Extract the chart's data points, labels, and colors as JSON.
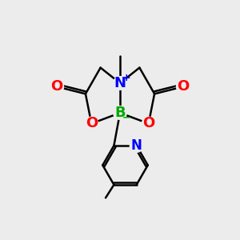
{
  "bg_color": "#ececec",
  "atom_colors": {
    "C": "#000000",
    "N": "#0000ff",
    "O": "#ff0000",
    "B": "#00aa00"
  },
  "bond_color": "#000000",
  "bond_width": 1.8,
  "figsize": [
    3.0,
    3.0
  ],
  "dpi": 100
}
